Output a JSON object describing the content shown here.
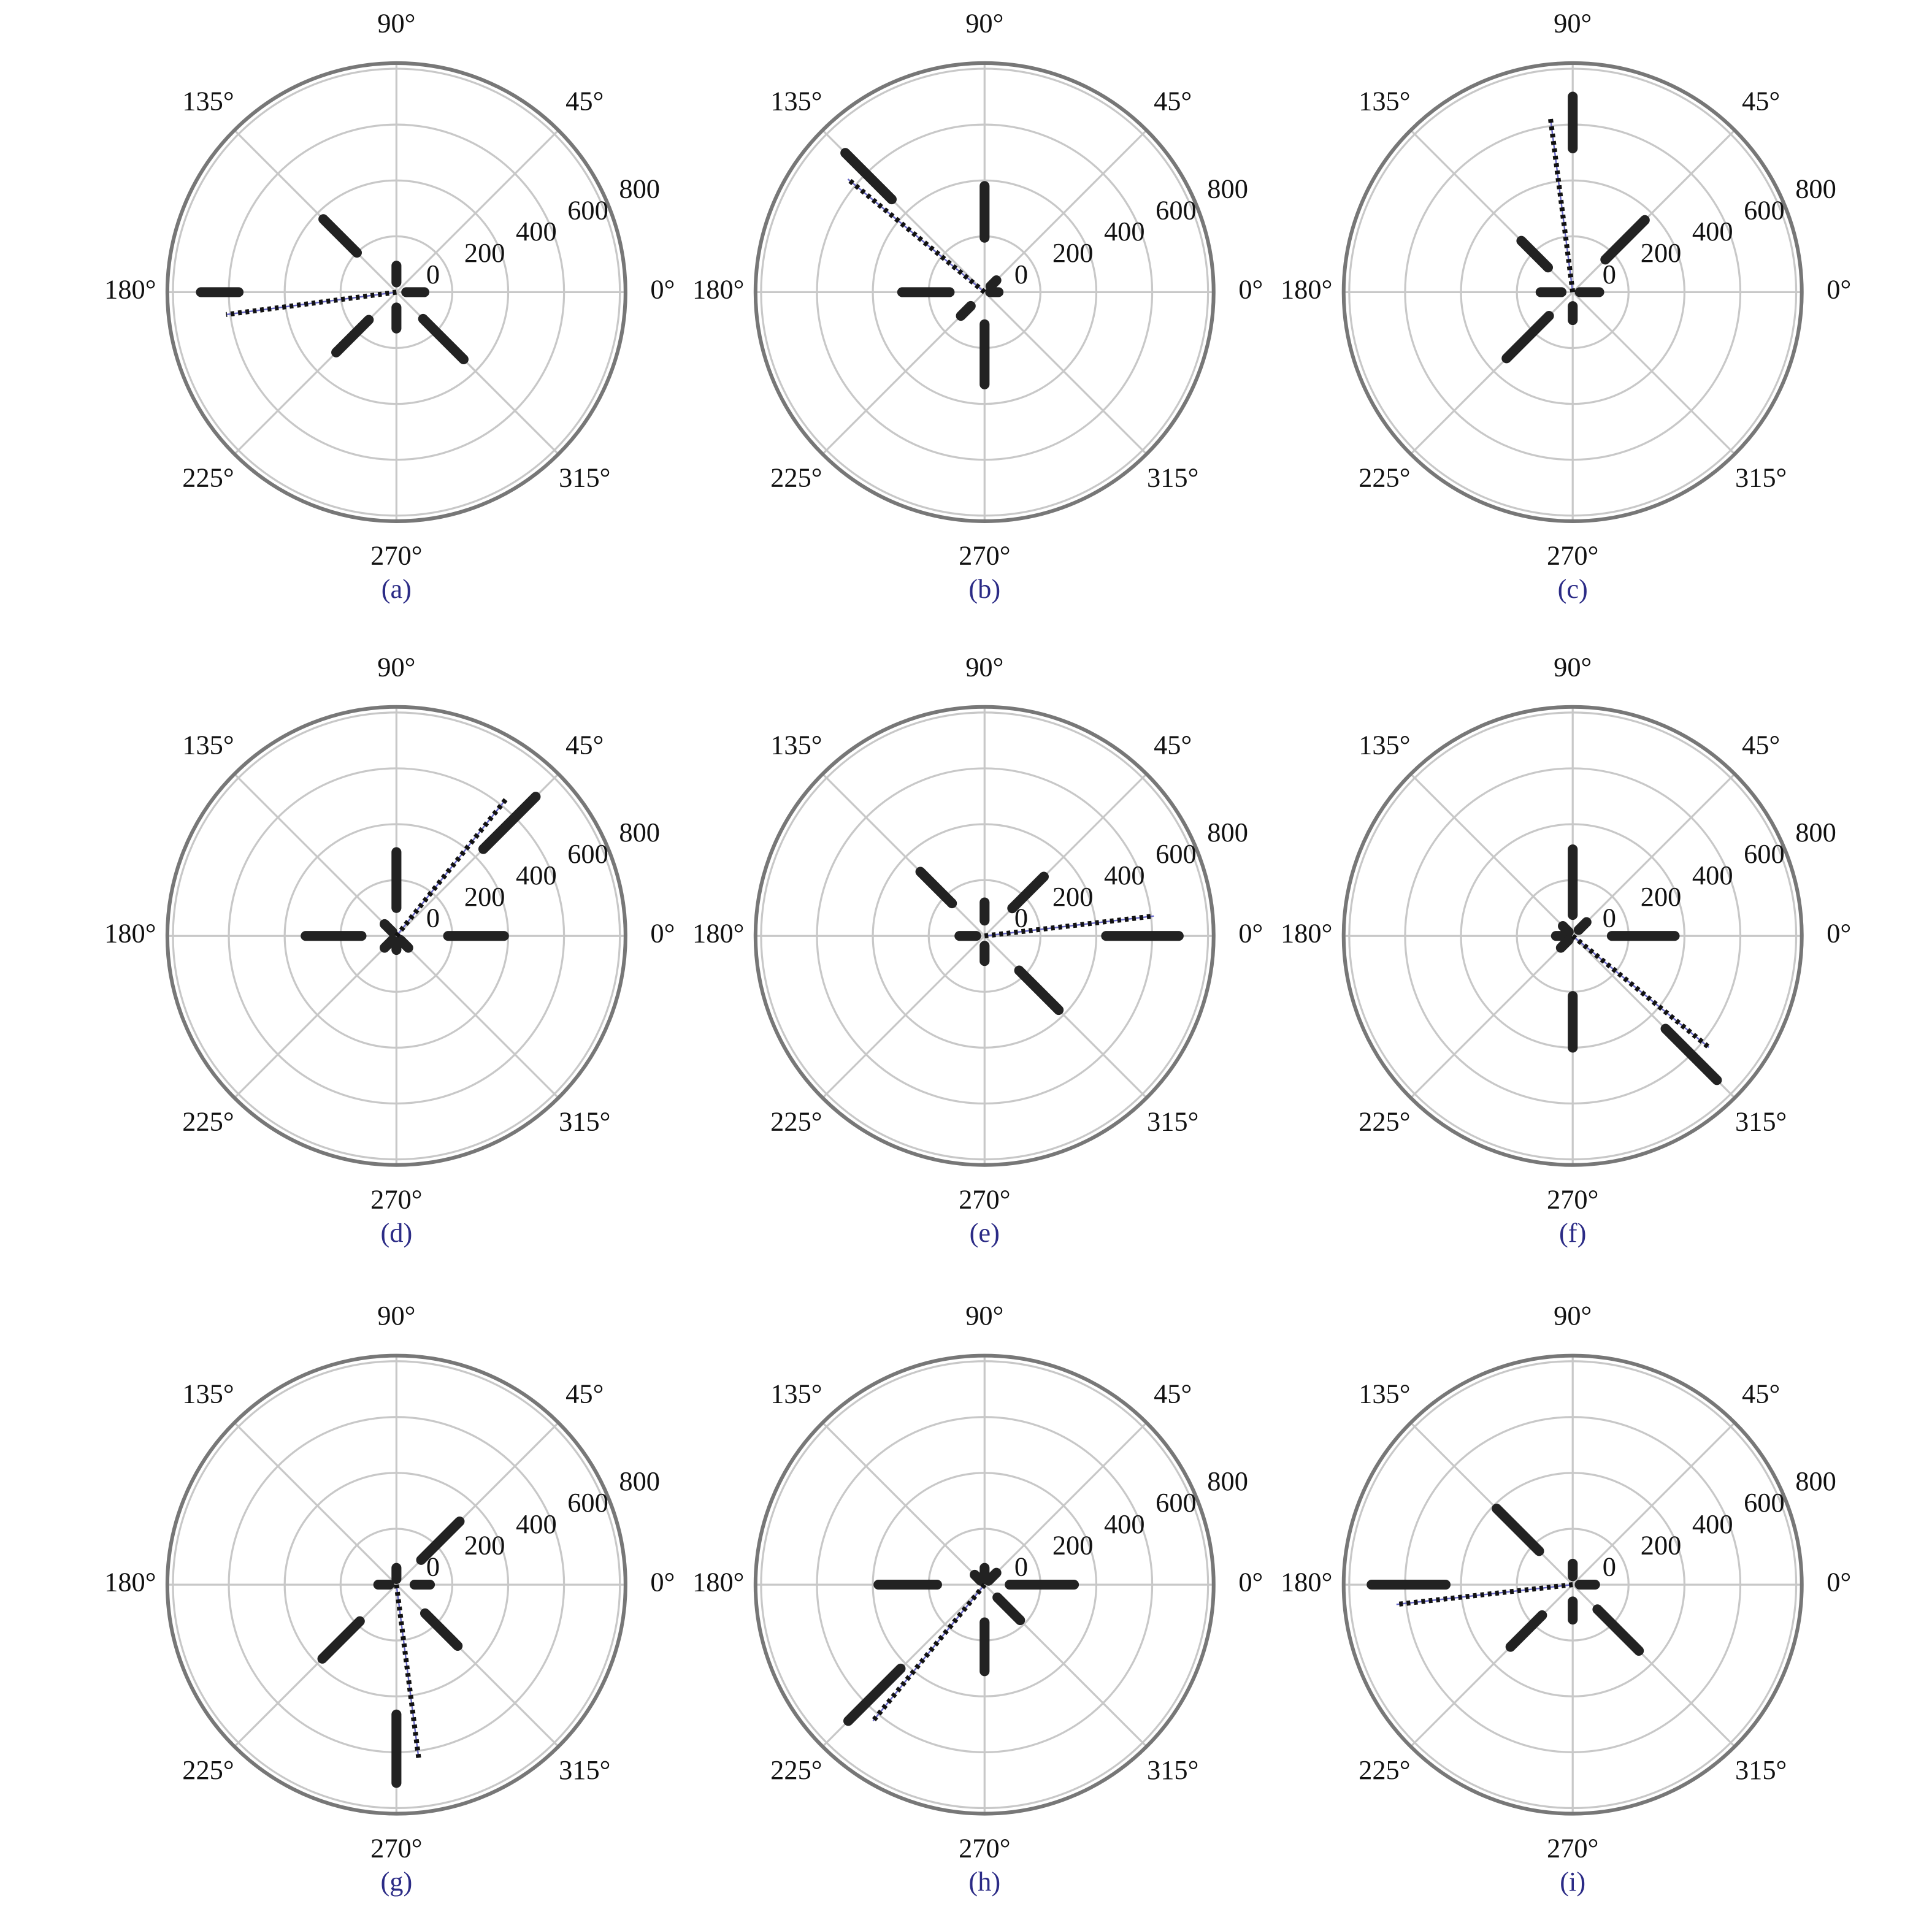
{
  "chart_data": [
    {
      "type": "polar",
      "label": "(a)",
      "theta_ticks": [
        {
          "value": 0,
          "label": "0°"
        },
        {
          "value": 45,
          "label": "45°"
        },
        {
          "value": 90,
          "label": "90°"
        },
        {
          "value": 135,
          "label": "135°"
        },
        {
          "value": 180,
          "label": "180°"
        },
        {
          "value": 225,
          "label": "225°"
        },
        {
          "value": 270,
          "label": "270°"
        },
        {
          "value": 315,
          "label": "315°"
        }
      ],
      "rlim": [
        0,
        820
      ],
      "rticks": [
        0,
        200,
        400,
        600,
        800
      ],
      "grid": true,
      "theta": [
        0,
        45,
        90,
        135,
        180,
        225,
        270,
        315
      ],
      "r_inner": [
        35,
        null,
        35,
        200,
        565,
        140,
        55,
        135
      ],
      "r_outer": [
        100,
        null,
        95,
        370,
        700,
        305,
        130,
        340
      ],
      "resultant_theta": 187.5,
      "resultant_r": 615
    },
    {
      "type": "polar",
      "label": "(b)",
      "theta_ticks": [
        {
          "value": 0,
          "label": "0°"
        },
        {
          "value": 45,
          "label": "45°"
        },
        {
          "value": 90,
          "label": "90°"
        },
        {
          "value": 135,
          "label": "135°"
        },
        {
          "value": 180,
          "label": "180°"
        },
        {
          "value": 225,
          "label": "225°"
        },
        {
          "value": 270,
          "label": "270°"
        },
        {
          "value": 315,
          "label": "315°"
        }
      ],
      "rlim": [
        0,
        820
      ],
      "rticks": [
        0,
        200,
        400,
        600,
        800
      ],
      "grid": true,
      "theta": [
        0,
        45,
        90,
        135,
        180,
        225,
        270,
        315
      ],
      "r_inner": [
        20,
        30,
        195,
        470,
        125,
        70,
        115,
        null
      ],
      "r_outer": [
        50,
        60,
        380,
        705,
        295,
        120,
        330,
        null
      ],
      "resultant_theta": 140.4,
      "resultant_r": 635
    },
    {
      "type": "polar",
      "label": "(c)",
      "theta_ticks": [
        {
          "value": 0,
          "label": "0°"
        },
        {
          "value": 45,
          "label": "45°"
        },
        {
          "value": 90,
          "label": "90°"
        },
        {
          "value": 135,
          "label": "135°"
        },
        {
          "value": 180,
          "label": "180°"
        },
        {
          "value": 225,
          "label": "225°"
        },
        {
          "value": 270,
          "label": "270°"
        },
        {
          "value": 315,
          "label": "315°"
        }
      ],
      "rlim": [
        0,
        820
      ],
      "rticks": [
        0,
        200,
        400,
        600,
        800
      ],
      "grid": true,
      "theta": [
        0,
        45,
        90,
        135,
        180,
        225,
        270,
        315
      ],
      "r_inner": [
        25,
        165,
        515,
        125,
        40,
        120,
        50,
        null
      ],
      "r_outer": [
        95,
        365,
        700,
        260,
        115,
        335,
        100,
        null
      ],
      "resultant_theta": 97.3,
      "resultant_r": 625
    },
    {
      "type": "polar",
      "label": "(d)",
      "theta_ticks": [
        {
          "value": 0,
          "label": "0°"
        },
        {
          "value": 45,
          "label": "45°"
        },
        {
          "value": 90,
          "label": "90°"
        },
        {
          "value": 135,
          "label": "135°"
        },
        {
          "value": 180,
          "label": "180°"
        },
        {
          "value": 225,
          "label": "225°"
        },
        {
          "value": 270,
          "label": "270°"
        },
        {
          "value": 315,
          "label": "315°"
        }
      ],
      "rlim": [
        0,
        820
      ],
      "rticks": [
        0,
        200,
        400,
        600,
        800
      ],
      "grid": true,
      "theta": [
        0,
        45,
        90,
        135,
        180,
        225,
        270,
        315
      ],
      "r_inner": [
        185,
        440,
        100,
        20,
        125,
        20,
        20,
        20
      ],
      "r_outer": [
        385,
        705,
        300,
        60,
        325,
        60,
        50,
        60
      ],
      "resultant_theta": 51.3,
      "resultant_r": 625
    },
    {
      "type": "polar",
      "label": "(e)",
      "theta_ticks": [
        {
          "value": 0,
          "label": "0°"
        },
        {
          "value": 45,
          "label": "45°"
        },
        {
          "value": 90,
          "label": "90°"
        },
        {
          "value": 135,
          "label": "135°"
        },
        {
          "value": 180,
          "label": "180°"
        },
        {
          "value": 225,
          "label": "225°"
        },
        {
          "value": 270,
          "label": "270°"
        },
        {
          "value": 315,
          "label": "315°"
        }
      ],
      "rlim": [
        0,
        820
      ],
      "rticks": [
        0,
        200,
        400,
        600,
        800
      ],
      "grid": true,
      "theta": [
        0,
        45,
        90,
        135,
        180,
        225,
        270,
        315
      ],
      "r_inner": [
        435,
        140,
        55,
        165,
        30,
        null,
        35,
        175
      ],
      "r_outer": [
        695,
        300,
        120,
        325,
        90,
        null,
        90,
        375
      ],
      "resultant_theta": 6.7,
      "resultant_r": 610
    },
    {
      "type": "polar",
      "label": "(f)",
      "theta_ticks": [
        {
          "value": 0,
          "label": "0°"
        },
        {
          "value": 45,
          "label": "45°"
        },
        {
          "value": 90,
          "label": "90°"
        },
        {
          "value": 135,
          "label": "135°"
        },
        {
          "value": 180,
          "label": "180°"
        },
        {
          "value": 225,
          "label": "225°"
        },
        {
          "value": 270,
          "label": "270°"
        },
        {
          "value": 315,
          "label": "315°"
        }
      ],
      "rlim": [
        0,
        820
      ],
      "rticks": [
        0,
        200,
        400,
        600,
        800
      ],
      "grid": true,
      "theta": [
        0,
        45,
        90,
        135,
        180,
        225,
        270,
        315
      ],
      "r_inner": [
        140,
        30,
        75,
        20,
        20,
        20,
        215,
        470
      ],
      "r_outer": [
        365,
        70,
        310,
        50,
        60,
        60,
        400,
        730
      ],
      "resultant_theta": 320.7,
      "resultant_r": 630
    },
    {
      "type": "polar",
      "label": "(g)",
      "theta_ticks": [
        {
          "value": 0,
          "label": "0°"
        },
        {
          "value": 45,
          "label": "45°"
        },
        {
          "value": 90,
          "label": "90°"
        },
        {
          "value": 135,
          "label": "135°"
        },
        {
          "value": 180,
          "label": "180°"
        },
        {
          "value": 225,
          "label": "225°"
        },
        {
          "value": 270,
          "label": "270°"
        },
        {
          "value": 315,
          "label": "315°"
        }
      ],
      "rlim": [
        0,
        820
      ],
      "rticks": [
        0,
        200,
        400,
        600,
        800
      ],
      "grid": true,
      "theta": [
        0,
        45,
        90,
        135,
        180,
        225,
        270,
        315
      ],
      "r_inner": [
        65,
        125,
        20,
        null,
        25,
        185,
        465,
        145
      ],
      "r_outer": [
        120,
        320,
        60,
        null,
        65,
        375,
        710,
        310
      ],
      "resultant_theta": 277.3,
      "resultant_r": 625
    },
    {
      "type": "polar",
      "label": "(h)",
      "theta_ticks": [
        {
          "value": 0,
          "label": "0°"
        },
        {
          "value": 45,
          "label": "45°"
        },
        {
          "value": 90,
          "label": "90°"
        },
        {
          "value": 135,
          "label": "135°"
        },
        {
          "value": 180,
          "label": "180°"
        },
        {
          "value": 225,
          "label": "225°"
        },
        {
          "value": 270,
          "label": "270°"
        },
        {
          "value": 315,
          "label": "315°"
        }
      ],
      "rlim": [
        0,
        820
      ],
      "rticks": [
        0,
        200,
        400,
        600,
        800
      ],
      "grid": true,
      "theta": [
        0,
        45,
        90,
        135,
        180,
        225,
        270,
        315
      ],
      "r_inner": [
        90,
        20,
        20,
        20,
        170,
        425,
        135,
        65
      ],
      "r_outer": [
        320,
        60,
        60,
        50,
        380,
        690,
        310,
        180
      ],
      "resultant_theta": 230.7,
      "resultant_r": 630
    },
    {
      "type": "polar",
      "label": "(i)",
      "theta_ticks": [
        {
          "value": 0,
          "label": "0°"
        },
        {
          "value": 45,
          "label": "45°"
        },
        {
          "value": 90,
          "label": "90°"
        },
        {
          "value": 135,
          "label": "135°"
        },
        {
          "value": 180,
          "label": "180°"
        },
        {
          "value": 225,
          "label": "225°"
        },
        {
          "value": 270,
          "label": "270°"
        },
        {
          "value": 315,
          "label": "315°"
        }
      ],
      "rlim": [
        0,
        820
      ],
      "rticks": [
        0,
        200,
        400,
        600,
        800
      ],
      "grid": true,
      "theta": [
        0,
        45,
        90,
        135,
        180,
        225,
        270,
        315
      ],
      "r_inner": [
        25,
        null,
        30,
        170,
        455,
        155,
        60,
        125
      ],
      "r_outer": [
        80,
        null,
        75,
        385,
        720,
        315,
        125,
        335
      ],
      "resultant_theta": 186.4,
      "resultant_r": 635
    }
  ]
}
